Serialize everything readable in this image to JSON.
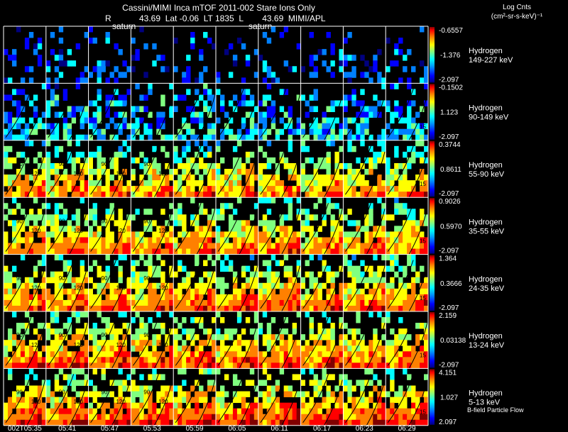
{
  "header": {
    "title": "Cassini/MIMI Inca mTOF  2011-002   Stare   Ions Only",
    "r_label": "R",
    "saturn_label_1": "saturn",
    "info": "43.69  Lat -0.06  LT 1835  L        43.69  MIMI/APL",
    "saturn_label_2": "saturn"
  },
  "legend": {
    "units_title": "Log Cnts",
    "units_line": "(cm²-sr-s-keV)⁻¹",
    "footer": "B-field  Particle Flow"
  },
  "chart_data": {
    "type": "heatmap",
    "title": "Cassini/MIMI Inca mTOF  2011-002   Stare   Ions Only",
    "time_labels": [
      "002T05:35",
      "05:41",
      "05:47",
      "05:53",
      "05:59",
      "06:05",
      "06:11",
      "06:17",
      "06:23",
      "06:29"
    ],
    "rows": [
      {
        "species": "Hydrogen",
        "energy": "149-227 keV",
        "cmax": "-0.6557",
        "cmid": "-1.376",
        "cmin": "-2.097",
        "density": 0.28,
        "contours": []
      },
      {
        "species": "Hydrogen",
        "energy": "90-149 keV",
        "cmax": "-0.1502",
        "cmid": "1.123",
        "cmin": "-2.097",
        "density": 0.55,
        "contours": [
          "15"
        ]
      },
      {
        "species": "Hydrogen",
        "energy": "55-90 keV",
        "cmax": "0.3744",
        "cmid": "0.8611",
        "cmin": "-2.097",
        "density": 0.72,
        "contours": [
          "90",
          "120",
          "15"
        ]
      },
      {
        "species": "Hydrogen",
        "energy": "35-55 keV",
        "cmax": "0.9026",
        "cmid": "0.5970",
        "cmin": "-2.097",
        "density": 0.8,
        "contours": [
          "90",
          "120",
          "15"
        ]
      },
      {
        "species": "Hydrogen",
        "energy": "24-35 keV",
        "cmax": "1.364",
        "cmid": "0.3666",
        "cmin": "-2.097",
        "density": 0.85,
        "contours": [
          "90",
          "120",
          "15"
        ]
      },
      {
        "species": "Hydrogen",
        "energy": "13-24 keV",
        "cmax": "2.159",
        "cmid": "0.03138",
        "cmin": "-2.097",
        "density": 0.85,
        "contours": [
          "90",
          "120",
          "15"
        ]
      },
      {
        "species": "Hydrogen",
        "energy": "5-13 keV",
        "cmax": "4.151",
        "cmid": "1.027",
        "cmin": "2.097",
        "density": 0.85,
        "contours": [
          "90",
          "120",
          "15"
        ]
      }
    ]
  },
  "colors": {
    "background": "#000000",
    "grid": "#ffffff",
    "colormap": [
      "#000080",
      "#0000ff",
      "#0080ff",
      "#00ffff",
      "#80ff80",
      "#ffff00",
      "#ff8000",
      "#ff0000",
      "#800000"
    ]
  }
}
